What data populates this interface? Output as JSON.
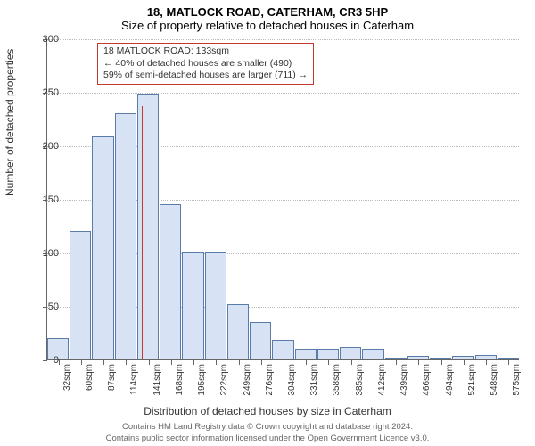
{
  "titles": {
    "address": "18, MATLOCK ROAD, CATERHAM, CR3 5HP",
    "subtitle": "Size of property relative to detached houses in Caterham"
  },
  "ylabel": "Number of detached properties",
  "xlabel": "Distribution of detached houses by size in Caterham",
  "chart": {
    "type": "bar",
    "ylim": [
      0,
      300
    ],
    "ytick_step": 50,
    "yticks": [
      0,
      50,
      100,
      150,
      200,
      250,
      300
    ],
    "categories": [
      "32sqm",
      "60sqm",
      "87sqm",
      "114sqm",
      "141sqm",
      "168sqm",
      "195sqm",
      "222sqm",
      "249sqm",
      "276sqm",
      "304sqm",
      "331sqm",
      "358sqm",
      "385sqm",
      "412sqm",
      "439sqm",
      "466sqm",
      "494sqm",
      "521sqm",
      "548sqm",
      "575sqm"
    ],
    "values": [
      20,
      120,
      208,
      230,
      248,
      145,
      100,
      100,
      52,
      35,
      18,
      10,
      10,
      12,
      10,
      2,
      3,
      2,
      3,
      4,
      2
    ],
    "bar_fill": "#d7e3f4",
    "bar_stroke": "#5a7ca8",
    "grid_color": "#bbbbbb",
    "axis_color": "#666666",
    "highlight_index": 3.7,
    "highlight_color": "#c0392b",
    "background_color": "#ffffff"
  },
  "annotation": {
    "line1": "18 MATLOCK ROAD: 133sqm",
    "line2": "← 40% of detached houses are smaller (490)",
    "line3": "59% of semi-detached houses are larger (711) →"
  },
  "footer": {
    "line1": "Contains HM Land Registry data © Crown copyright and database right 2024.",
    "line2": "Contains public sector information licensed under the Open Government Licence v3.0."
  },
  "fonts": {
    "title_size": 13,
    "label_size": 12,
    "tick_size": 11,
    "xtick_size": 10,
    "annotation_size": 10.5,
    "footer_size": 9.5
  }
}
